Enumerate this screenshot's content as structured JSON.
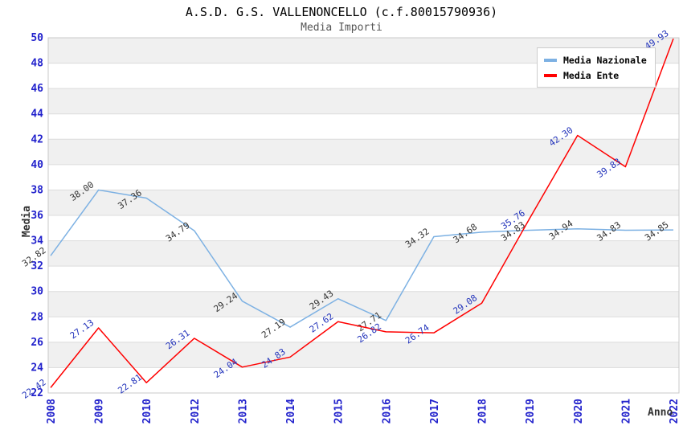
{
  "header": {
    "title": "A.S.D. G.S. VALLENONCELLO (c.f.80015790936)",
    "subtitle": "Media Importi"
  },
  "axes": {
    "y_title": "Media",
    "x_title": "Anno",
    "y_ticks": [
      22,
      24,
      26,
      28,
      30,
      32,
      34,
      36,
      38,
      40,
      42,
      44,
      46,
      48,
      50
    ],
    "tick_color": "#2222cc",
    "band_gray": "#f0f0f0",
    "band_white": "#ffffff",
    "gridline_color": "#dcdcdc",
    "border_color": "#c8c8c8"
  },
  "legend": {
    "items": [
      {
        "label": "Media Nazionale",
        "color": "#7db1e3"
      },
      {
        "label": "Media Ente",
        "color": "#ff0000"
      }
    ]
  },
  "chart_data": {
    "type": "line",
    "title": "A.S.D. G.S. VALLENONCELLO (c.f.80015790936)",
    "subtitle": "Media Importi",
    "xlabel": "Anno",
    "ylabel": "Media",
    "ylim": [
      22,
      50
    ],
    "y_step": 2,
    "grid": "alternating horizontal bands every 2 units, gray topmost (48-50)",
    "legend_position": "top-right inside plot",
    "categories": [
      "2008",
      "2009",
      "2010",
      "2012",
      "2013",
      "2014",
      "2015",
      "2016",
      "2017",
      "2018",
      "2019",
      "2020",
      "2021",
      "2022"
    ],
    "series": [
      {
        "name": "Media Nazionale",
        "color": "#7db1e3",
        "label_color": "#333333",
        "values": [
          32.82,
          38.0,
          37.36,
          34.79,
          29.24,
          27.19,
          29.43,
          27.71,
          34.32,
          34.68,
          34.83,
          34.94,
          34.83,
          34.85
        ],
        "point_labels": [
          "32.82",
          "38.00",
          "37.36",
          "34.79",
          "29.24",
          "27.19",
          "29.43",
          "27.71",
          "34.32",
          "34.68",
          "34.83",
          "34.94",
          "34.83",
          "34.85"
        ]
      },
      {
        "name": "Media Ente",
        "color": "#ff0000",
        "label_color": "#2233bb",
        "values": [
          22.42,
          27.13,
          22.81,
          26.31,
          24.04,
          24.83,
          27.62,
          26.82,
          26.74,
          29.08,
          35.76,
          42.3,
          39.83,
          49.93
        ],
        "point_labels": [
          "22.42",
          "27.13",
          "22.81",
          "26.31",
          "24.04",
          "24.83",
          "27.62",
          "26.82",
          "26.74",
          "29.08",
          "35.76",
          "42.30",
          "39.83",
          "49.93"
        ]
      }
    ]
  }
}
